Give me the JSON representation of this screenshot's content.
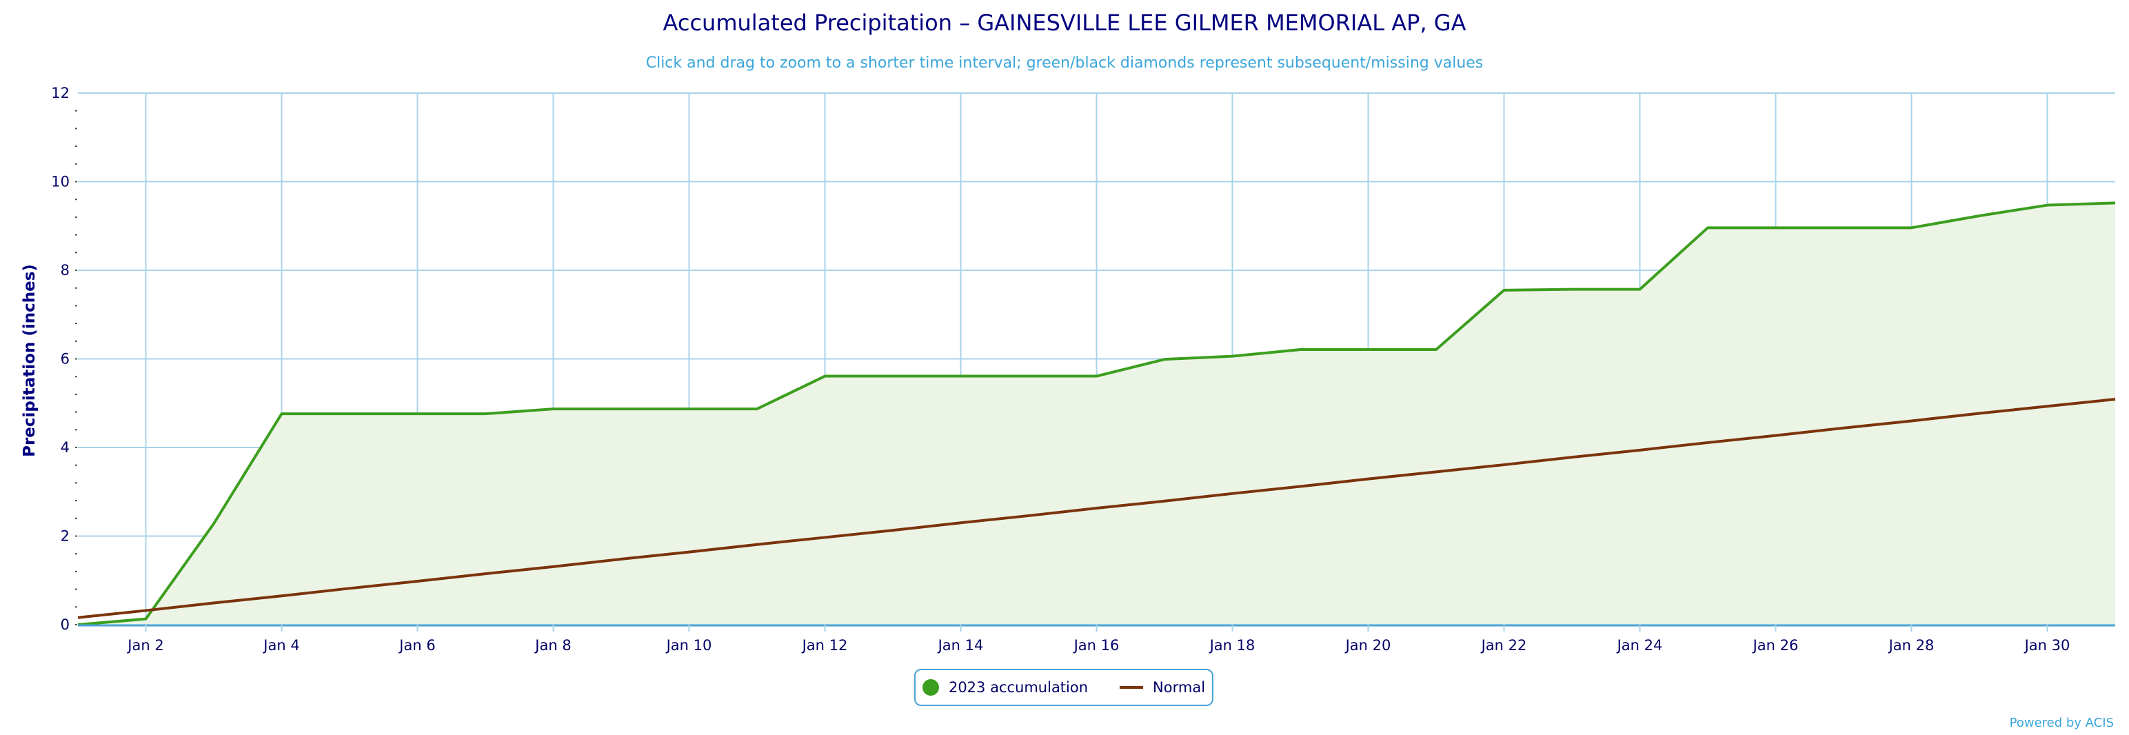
{
  "colors": {
    "accent_title": "#000080",
    "subtitle": "#3aa6d9",
    "grid": "#a9d3ea",
    "accumulation_line": "#3c9e1e",
    "accumulation_fill": "#ecf4e6",
    "normal_line": "#7b330c",
    "axis_text": "#000066"
  },
  "legend": {
    "items": [
      {
        "label": "2023 accumulation",
        "icon": "green-circle-icon"
      },
      {
        "label": "Normal",
        "icon": "brown-line-icon"
      }
    ]
  },
  "credits": {
    "label": "Powered by ACIS"
  },
  "chart_data": {
    "type": "area",
    "title": "Accumulated Precipitation – GAINESVILLE LEE GILMER MEMORIAL AP, GA",
    "subtitle": "Click and drag to zoom to a shorter time interval; green/black diamonds represent subsequent/missing values",
    "ylabel": "Precipitation (inches)",
    "xlabel": "",
    "ylim": [
      0,
      12
    ],
    "xlim": [
      1,
      31
    ],
    "grid": true,
    "legend_position": "bottom-center",
    "x_ticks": [
      2,
      4,
      6,
      8,
      10,
      12,
      14,
      16,
      18,
      20,
      22,
      24,
      26,
      28,
      30
    ],
    "x_tick_labels": [
      "Jan 2",
      "Jan 4",
      "Jan 6",
      "Jan 8",
      "Jan 10",
      "Jan 12",
      "Jan 14",
      "Jan 16",
      "Jan 18",
      "Jan 20",
      "Jan 22",
      "Jan 24",
      "Jan 26",
      "Jan 28",
      "Jan 30"
    ],
    "y_ticks": [
      0,
      2,
      4,
      6,
      8,
      10,
      12
    ],
    "y_tick_labels": [
      "0",
      "2",
      "4",
      "6",
      "8",
      "10",
      "12"
    ],
    "x": [
      1,
      2,
      3,
      4,
      5,
      6,
      7,
      8,
      9,
      10,
      11,
      12,
      13,
      14,
      15,
      16,
      17,
      18,
      19,
      20,
      21,
      22,
      23,
      24,
      25,
      26,
      27,
      28,
      29,
      30,
      31
    ],
    "series": [
      {
        "name": "2023 accumulation",
        "values": [
          0.0,
          0.13,
          2.28,
          4.76,
          4.76,
          4.76,
          4.76,
          4.87,
          4.87,
          4.87,
          4.87,
          5.61,
          5.61,
          5.61,
          5.61,
          5.61,
          5.99,
          6.06,
          6.21,
          6.21,
          6.21,
          7.55,
          7.57,
          7.57,
          8.96,
          8.96,
          8.96,
          8.96,
          9.23,
          9.47,
          9.52
        ]
      },
      {
        "name": "Normal",
        "values": [
          0.16,
          0.32,
          0.49,
          0.65,
          0.82,
          0.98,
          1.15,
          1.31,
          1.48,
          1.64,
          1.81,
          1.97,
          2.13,
          2.3,
          2.46,
          2.63,
          2.79,
          2.96,
          3.12,
          3.29,
          3.45,
          3.61,
          3.78,
          3.94,
          4.11,
          4.27,
          4.44,
          4.6,
          4.77,
          4.93,
          5.09
        ]
      }
    ]
  }
}
